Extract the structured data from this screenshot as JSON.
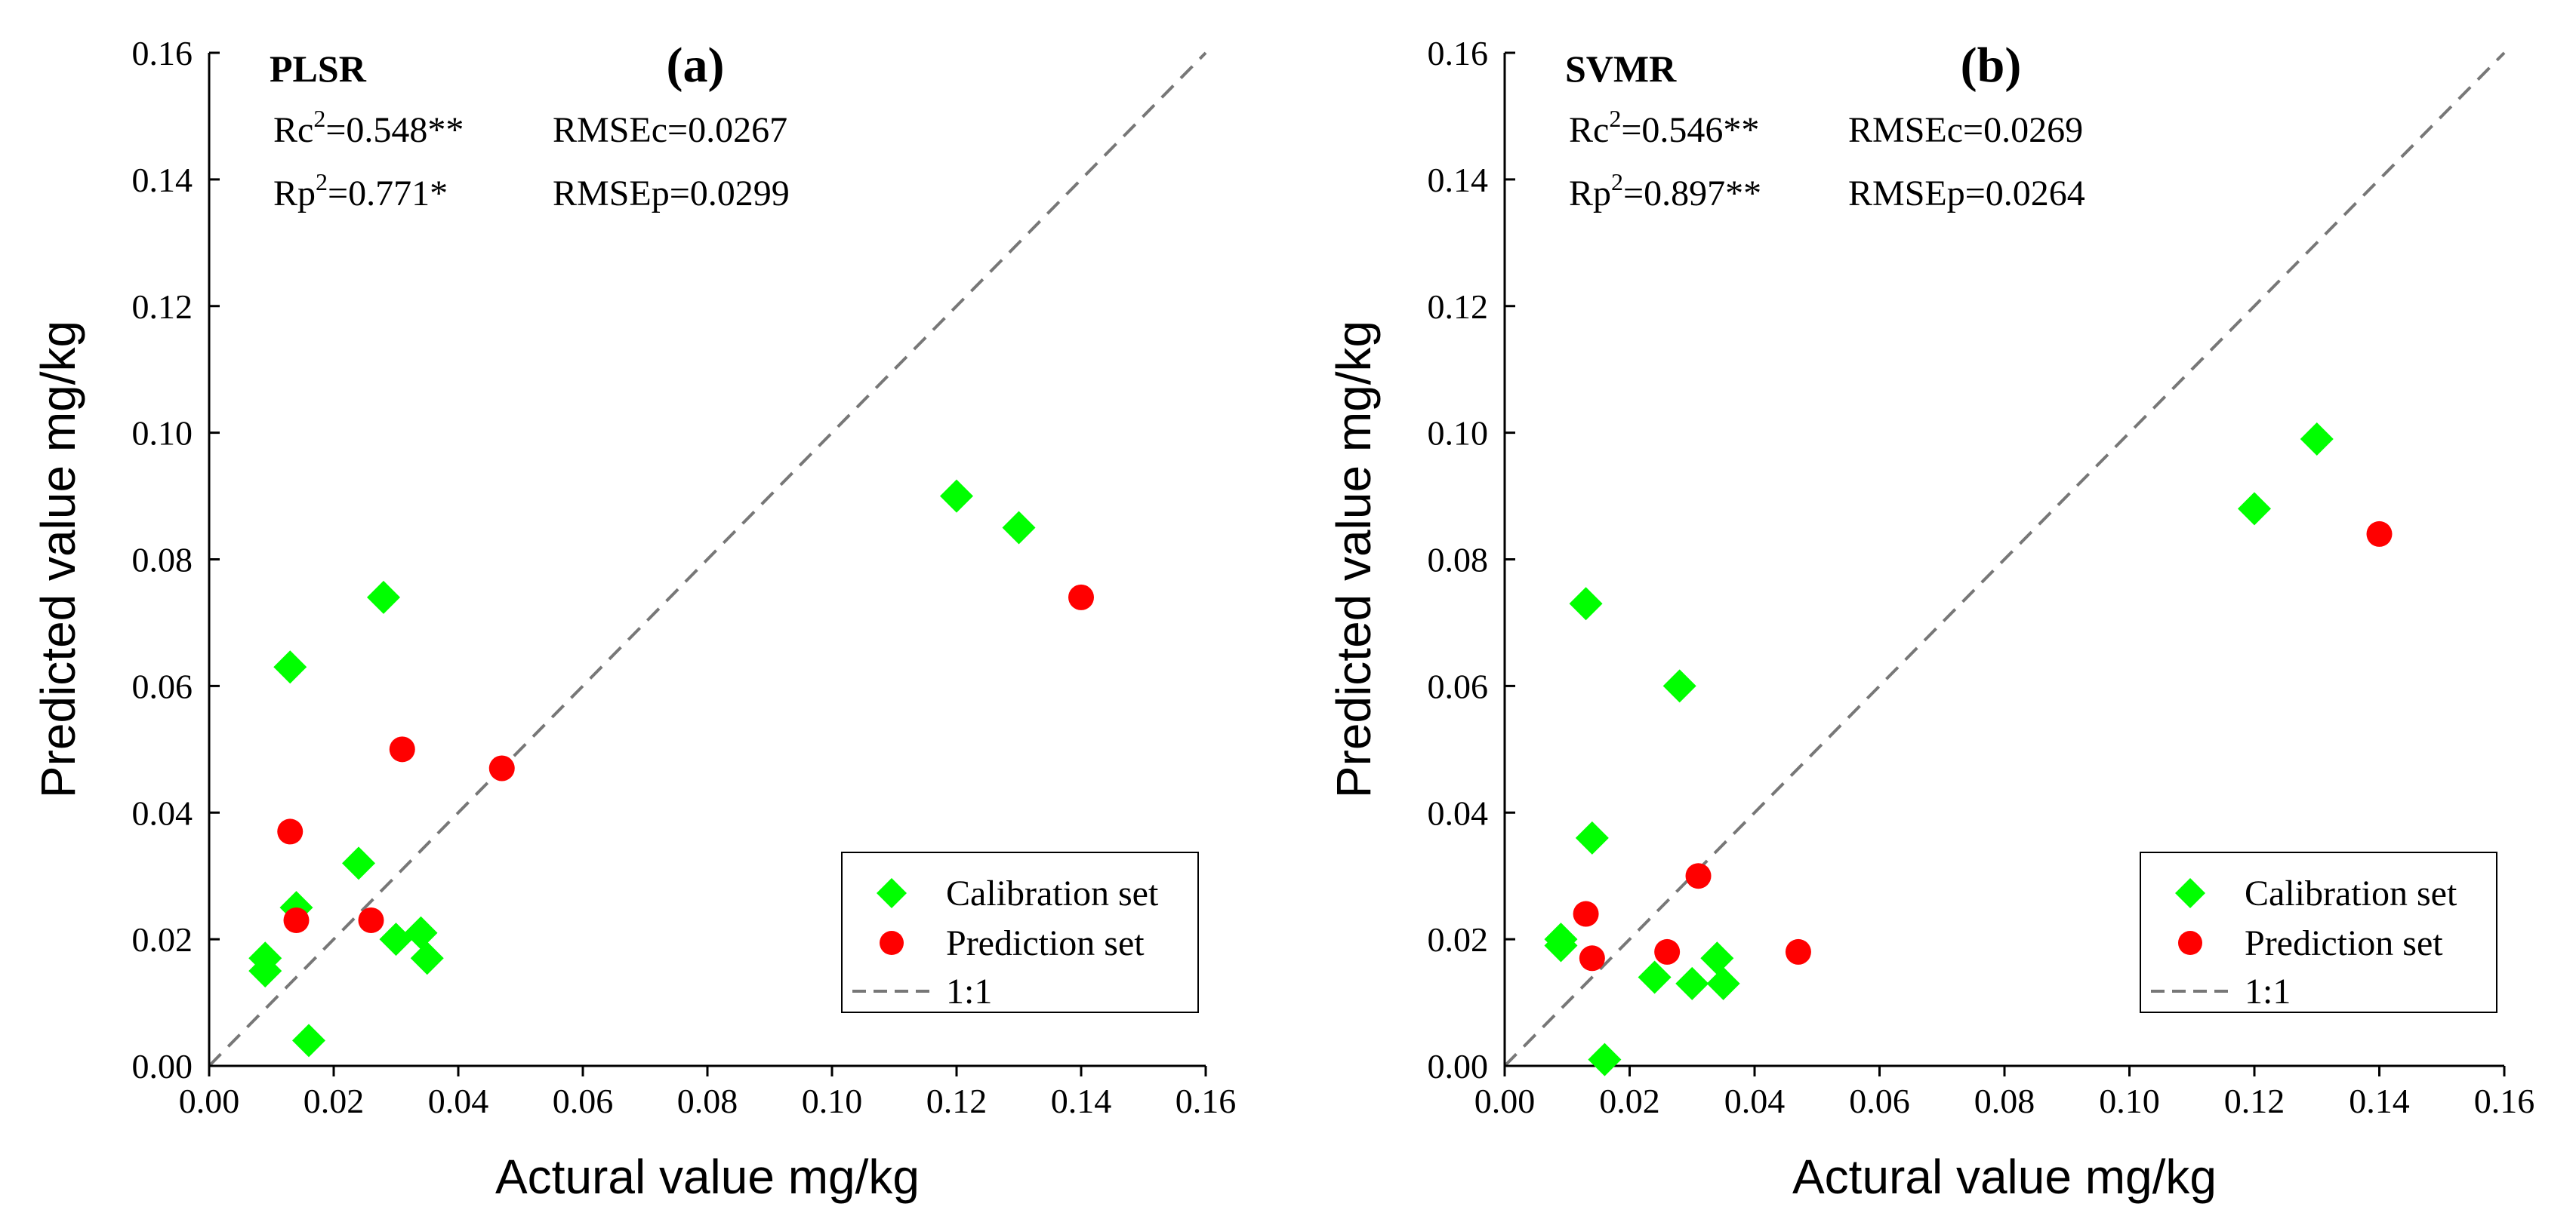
{
  "chart_data": [
    {
      "type": "scatter",
      "panel_label": "(a)",
      "model": "PLSR",
      "stats": {
        "rc2_prefix": "Rc",
        "rc2_value": "=0.548**",
        "rmsec": "RMSEc=0.0267",
        "rp2_prefix": "Rp",
        "rp2_value": "=0.771*",
        "rmsep": "RMSEp=0.0299"
      },
      "xlabel": "Actural value mg/kg",
      "ylabel": "Predicted value mg/kg",
      "xlim": [
        0,
        0.16
      ],
      "ylim": [
        0,
        0.16
      ],
      "xticks": [
        "0.00",
        "0.02",
        "0.04",
        "0.06",
        "0.08",
        "0.10",
        "0.12",
        "0.14",
        "0.16"
      ],
      "yticks": [
        "0.00",
        "0.02",
        "0.04",
        "0.06",
        "0.08",
        "0.10",
        "0.12",
        "0.14",
        "0.16"
      ],
      "legend_position": "bottom-right",
      "series": [
        {
          "name": "Calibration set",
          "marker": "diamond",
          "color": "#00ff00",
          "points": [
            [
              0.009,
              0.017
            ],
            [
              0.009,
              0.015
            ],
            [
              0.013,
              0.063
            ],
            [
              0.014,
              0.025
            ],
            [
              0.016,
              0.004
            ],
            [
              0.024,
              0.032
            ],
            [
              0.028,
              0.074
            ],
            [
              0.03,
              0.02
            ],
            [
              0.034,
              0.021
            ],
            [
              0.035,
              0.017
            ],
            [
              0.12,
              0.09
            ],
            [
              0.13,
              0.085
            ]
          ]
        },
        {
          "name": "Prediction set",
          "marker": "circle",
          "color": "#ff0000",
          "points": [
            [
              0.013,
              0.037
            ],
            [
              0.014,
              0.023
            ],
            [
              0.026,
              0.023
            ],
            [
              0.031,
              0.05
            ],
            [
              0.047,
              0.047
            ],
            [
              0.14,
              0.074
            ]
          ]
        }
      ],
      "reference_line": {
        "name": "1:1",
        "color": "#777777"
      }
    },
    {
      "type": "scatter",
      "panel_label": "(b)",
      "model": "SVMR",
      "stats": {
        "rc2_prefix": "Rc",
        "rc2_value": "=0.546**",
        "rmsec": "RMSEc=0.0269",
        "rp2_prefix": "Rp",
        "rp2_value": "=0.897**",
        "rmsep": "RMSEp=0.0264"
      },
      "xlabel": "Actural value mg/kg",
      "ylabel": "Predicted value mg/kg",
      "xlim": [
        0,
        0.16
      ],
      "ylim": [
        0,
        0.16
      ],
      "xticks": [
        "0.00",
        "0.02",
        "0.04",
        "0.06",
        "0.08",
        "0.10",
        "0.12",
        "0.14",
        "0.16"
      ],
      "yticks": [
        "0.00",
        "0.02",
        "0.04",
        "0.06",
        "0.08",
        "0.10",
        "0.12",
        "0.14",
        "0.16"
      ],
      "legend_position": "bottom-right",
      "series": [
        {
          "name": "Calibration set",
          "marker": "diamond",
          "color": "#00ff00",
          "points": [
            [
              0.009,
              0.02
            ],
            [
              0.009,
              0.019
            ],
            [
              0.013,
              0.073
            ],
            [
              0.014,
              0.036
            ],
            [
              0.016,
              0.001
            ],
            [
              0.024,
              0.014
            ],
            [
              0.028,
              0.06
            ],
            [
              0.03,
              0.013
            ],
            [
              0.034,
              0.017
            ],
            [
              0.035,
              0.013
            ],
            [
              0.12,
              0.088
            ],
            [
              0.13,
              0.099
            ]
          ]
        },
        {
          "name": "Prediction set",
          "marker": "circle",
          "color": "#ff0000",
          "points": [
            [
              0.013,
              0.024
            ],
            [
              0.014,
              0.017
            ],
            [
              0.026,
              0.018
            ],
            [
              0.031,
              0.03
            ],
            [
              0.047,
              0.018
            ],
            [
              0.14,
              0.084
            ]
          ]
        }
      ],
      "reference_line": {
        "name": "1:1",
        "color": "#777777"
      }
    }
  ]
}
